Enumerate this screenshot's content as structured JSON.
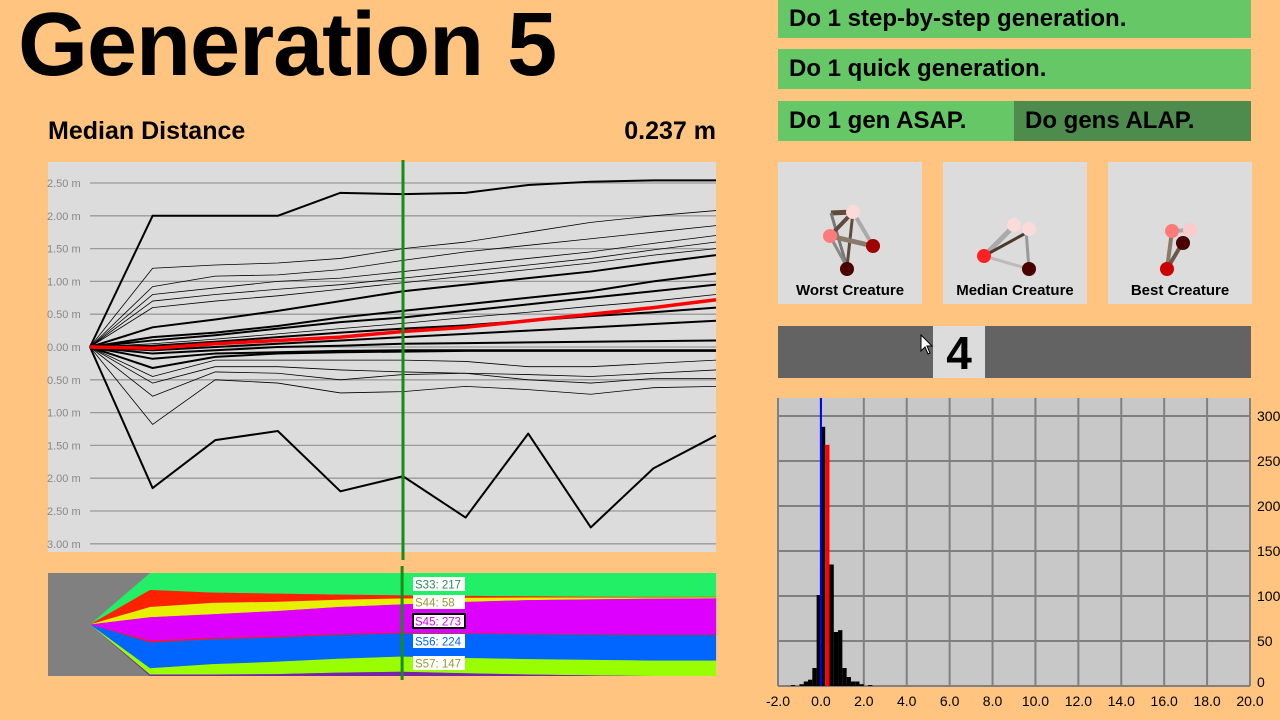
{
  "header": {
    "title": "Generation 5",
    "metric_label": "Median Distance",
    "metric_value": "0.237 m"
  },
  "buttons": {
    "step_by_step": "Do 1 step-by-step generation.",
    "quick": "Do 1 quick generation.",
    "asap": "Do 1 gen ASAP.",
    "alap": "Do gens ALAP."
  },
  "creatures": [
    {
      "label": "Worst Creature"
    },
    {
      "label": "Median Creature"
    },
    {
      "label": "Best Creature"
    }
  ],
  "slider": {
    "value": "4"
  },
  "colors": {
    "background": "#ffc580",
    "button": "#66c766",
    "button_active": "#4d8c4d",
    "median_line": "#ff0000",
    "current_gen_marker": "#1a8a1a"
  },
  "chart_data": [
    {
      "type": "line",
      "title": "Median Distance",
      "ylim": [
        -3.0,
        2.5
      ],
      "y_ticks": [
        "2.50 m",
        "2.00 m",
        "1.50 m",
        "1.00 m",
        "0.50 m",
        "0.00 m",
        "0.50 m",
        "1.00 m",
        "1.50 m",
        "2.00 m",
        "2.50 m",
        "3.00 m"
      ],
      "y_tick_values": [
        2.5,
        2.0,
        1.5,
        1.0,
        0.5,
        0.0,
        -0.5,
        -1.0,
        -1.5,
        -2.0,
        -2.5,
        -3.0
      ],
      "x": [
        0,
        1,
        2,
        3,
        4,
        5,
        6,
        7,
        8,
        9,
        10
      ],
      "current_generation_marker": 5,
      "series": [
        {
          "role": "max",
          "thick": true,
          "values": [
            0,
            2.0,
            2.0,
            2.0,
            2.35,
            2.33,
            2.35,
            2.47,
            2.52,
            2.54,
            2.54
          ]
        },
        {
          "thick": false,
          "values": [
            0,
            1.2,
            1.25,
            1.28,
            1.35,
            1.5,
            1.6,
            1.75,
            1.9,
            2.0,
            2.08
          ]
        },
        {
          "thick": false,
          "values": [
            0,
            0.92,
            1.08,
            1.1,
            1.18,
            1.32,
            1.45,
            1.55,
            1.65,
            1.75,
            1.85
          ]
        },
        {
          "thick": false,
          "values": [
            0,
            0.8,
            0.9,
            1.0,
            1.05,
            1.15,
            1.25,
            1.35,
            1.45,
            1.58,
            1.7
          ]
        },
        {
          "thick": false,
          "values": [
            0,
            0.7,
            0.8,
            0.88,
            0.95,
            1.05,
            1.15,
            1.25,
            1.35,
            1.48,
            1.6
          ]
        },
        {
          "thick": false,
          "values": [
            0,
            0.6,
            0.7,
            0.78,
            0.88,
            0.98,
            1.08,
            1.18,
            1.28,
            1.4,
            1.5
          ]
        },
        {
          "thick": true,
          "values": [
            0,
            0.3,
            0.42,
            0.55,
            0.7,
            0.85,
            0.95,
            1.05,
            1.15,
            1.28,
            1.4
          ]
        },
        {
          "thick": true,
          "values": [
            0,
            0.15,
            0.22,
            0.32,
            0.45,
            0.55,
            0.65,
            0.75,
            0.85,
            1.0,
            1.12
          ]
        },
        {
          "thick": true,
          "values": [
            0,
            0.1,
            0.18,
            0.28,
            0.38,
            0.45,
            0.55,
            0.65,
            0.75,
            0.85,
            0.95
          ]
        },
        {
          "thick": false,
          "values": [
            0,
            0.05,
            0.12,
            0.2,
            0.28,
            0.36,
            0.45,
            0.53,
            0.62,
            0.7,
            0.8
          ]
        },
        {
          "thick": true,
          "values": [
            0,
            0.02,
            0.08,
            0.15,
            0.22,
            0.28,
            0.33,
            0.4,
            0.47,
            0.53,
            0.6
          ]
        },
        {
          "thick": true,
          "values": [
            0,
            -0.05,
            0,
            0.05,
            0.1,
            0.15,
            0.2,
            0.25,
            0.3,
            0.35,
            0.4
          ]
        },
        {
          "thick": true,
          "values": [
            0,
            -0.1,
            -0.05,
            0,
            0.02,
            0.05,
            0.06,
            0.07,
            0.08,
            0.09,
            0.1
          ]
        },
        {
          "thick": true,
          "values": [
            0,
            -0.18,
            -0.1,
            -0.08,
            -0.06,
            -0.05,
            -0.05,
            -0.05,
            -0.05,
            -0.05,
            -0.05
          ]
        },
        {
          "thick": true,
          "values": [
            0,
            -0.32,
            -0.15,
            -0.1,
            -0.08,
            -0.07,
            -0.06,
            -0.06,
            -0.06,
            -0.06,
            -0.06
          ]
        },
        {
          "thick": false,
          "values": [
            0,
            -0.45,
            -0.2,
            -0.2,
            -0.2,
            -0.2,
            -0.22,
            -0.3,
            -0.3,
            -0.25,
            -0.2
          ]
        },
        {
          "thick": false,
          "values": [
            0,
            -0.55,
            -0.3,
            -0.3,
            -0.35,
            -0.38,
            -0.4,
            -0.42,
            -0.45,
            -0.4,
            -0.35
          ]
        },
        {
          "thick": false,
          "values": [
            0,
            -0.75,
            -0.38,
            -0.4,
            -0.5,
            -0.42,
            -0.4,
            -0.5,
            -0.55,
            -0.48,
            -0.48
          ]
        },
        {
          "thick": false,
          "values": [
            0,
            -1.18,
            -0.5,
            -0.55,
            -0.7,
            -0.68,
            -0.6,
            -0.65,
            -0.72,
            -0.62,
            -0.6
          ]
        },
        {
          "role": "min",
          "thick": true,
          "values": [
            0,
            -2.15,
            -1.42,
            -1.28,
            -2.2,
            -1.97,
            -2.6,
            -1.32,
            -2.75,
            -1.85,
            -1.35
          ]
        },
        {
          "role": "median",
          "thick": true,
          "color": "#ff0000",
          "values": [
            0,
            -0.02,
            0.05,
            0.1,
            0.15,
            0.237,
            0.3,
            0.4,
            0.5,
            0.6,
            0.72
          ]
        }
      ]
    },
    {
      "type": "area",
      "x": [
        0,
        1,
        2,
        3,
        4,
        5,
        6,
        7,
        8,
        9,
        10
      ],
      "species": [
        {
          "name": "S33",
          "color": "#22ee66",
          "values": [
            0,
            165,
            190,
            200,
            210,
            217,
            222,
            226,
            230,
            232,
            233
          ]
        },
        {
          "name": "",
          "color": "#ff2200",
          "values": [
            0,
            165,
            100,
            80,
            50,
            30,
            20,
            12,
            8,
            6,
            5
          ]
        },
        {
          "name": "S44",
          "color": "#e6f000",
          "values": [
            0,
            100,
            110,
            90,
            70,
            58,
            40,
            25,
            18,
            12,
            10
          ]
        },
        {
          "name": "S45",
          "color": "#dd00ff",
          "values": [
            0,
            225,
            230,
            245,
            260,
            273,
            300,
            325,
            335,
            345,
            350
          ]
        },
        {
          "name": "",
          "color": "#ee1144",
          "values": [
            0,
            20,
            15,
            12,
            12,
            10,
            8,
            8,
            8,
            8,
            8
          ]
        },
        {
          "name": "S56",
          "color": "#0066ff",
          "values": [
            0,
            250,
            240,
            235,
            230,
            224,
            235,
            240,
            245,
            248,
            250
          ]
        },
        {
          "name": "S57",
          "color": "#99ff00",
          "values": [
            0,
            60,
            100,
            120,
            135,
            147,
            148,
            150,
            150,
            150,
            150
          ]
        },
        {
          "name": "",
          "color": "#7722aa",
          "values": [
            0,
            15,
            15,
            18,
            33,
            41,
            27,
            14,
            6,
            -1,
            -6
          ]
        }
      ],
      "labels": [
        {
          "text": "S33: 217",
          "species": "S33"
        },
        {
          "text": "S44: 58",
          "species": "S44"
        },
        {
          "text": "S45: 273",
          "species": "S45",
          "selected": true
        },
        {
          "text": "S56: 224",
          "species": "S56"
        },
        {
          "text": "S57: 147",
          "species": "S57"
        }
      ]
    },
    {
      "type": "bar",
      "xlim": [
        -2.0,
        20.0
      ],
      "ylim": [
        0,
        300
      ],
      "x_ticks": [
        "-2.0",
        "0.0",
        "2.0",
        "4.0",
        "6.0",
        "8.0",
        "10.0",
        "12.0",
        "14.0",
        "16.0",
        "18.0",
        "20.0"
      ],
      "y_ticks": [
        "0",
        "50",
        "100",
        "150",
        "200",
        "250",
        "300"
      ],
      "bin_width": 0.2,
      "bins": [
        -1.4,
        -1.0,
        -0.8,
        -0.6,
        -0.4,
        -0.2,
        0.0,
        0.2,
        0.4,
        0.6,
        0.8,
        1.0,
        1.2,
        1.4,
        1.6,
        1.8,
        2.2
      ],
      "counts": [
        1,
        2,
        5,
        7,
        20,
        101,
        288,
        268,
        135,
        60,
        62,
        20,
        10,
        5,
        5,
        2,
        1
      ],
      "highlight_bin": 0.2,
      "highlight_color": "#ff0000",
      "zero_line_color": "#0000ff"
    }
  ]
}
